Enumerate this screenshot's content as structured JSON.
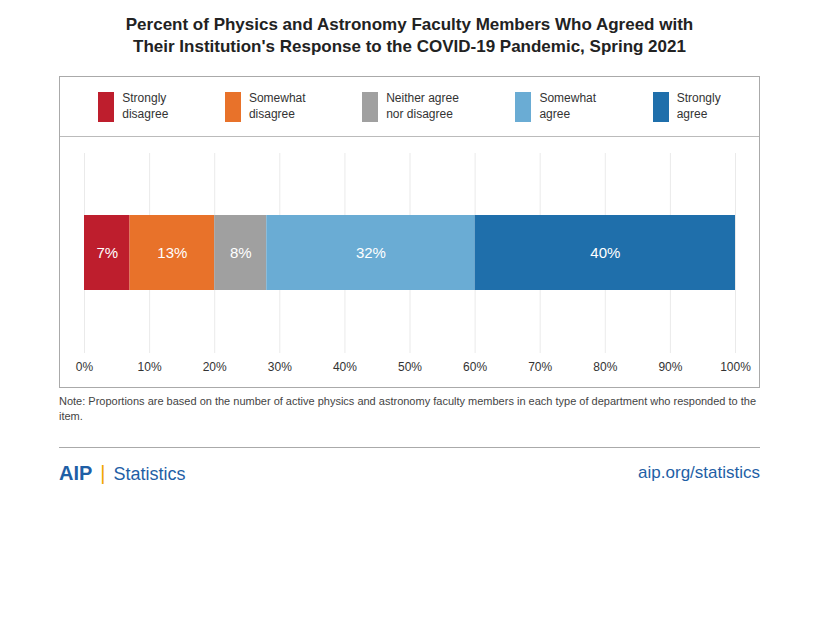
{
  "chart_data": {
    "type": "bar",
    "title": "Percent of Physics and Astronomy Faculty Members Who Agreed with\nTheir Institution's Response to the COVID-19 Pandemic, Spring 2021",
    "orientation": "horizontal",
    "stacked": true,
    "categories": [
      null
    ],
    "series": [
      {
        "name": "Strongly\ndisagree",
        "color": "#be1e2d",
        "values": [
          7
        ],
        "value_labels": [
          "7%"
        ]
      },
      {
        "name": "Somewhat\ndisagree",
        "color": "#e8722a",
        "values": [
          13
        ],
        "value_labels": [
          "13%"
        ]
      },
      {
        "name": "Neither agree\nnor disagree",
        "color": "#a0a0a0",
        "values": [
          8
        ],
        "value_labels": [
          "8%"
        ]
      },
      {
        "name": "Somewhat\nagree",
        "color": "#6aacd4",
        "values": [
          32
        ],
        "value_labels": [
          "32%"
        ]
      },
      {
        "name": "Strongly\nagree",
        "color": "#1f6fab",
        "values": [
          40
        ],
        "value_labels": [
          "40%"
        ]
      }
    ],
    "xlim": [
      0,
      100
    ],
    "xticks": [
      {
        "value": 0,
        "label": "0%"
      },
      {
        "value": 10,
        "label": "10%"
      },
      {
        "value": 20,
        "label": "20%"
      },
      {
        "value": 30,
        "label": "30%"
      },
      {
        "value": 40,
        "label": "40%"
      },
      {
        "value": 50,
        "label": "50%"
      },
      {
        "value": 60,
        "label": "60%"
      },
      {
        "value": 70,
        "label": "70%"
      },
      {
        "value": 80,
        "label": "80%"
      },
      {
        "value": 90,
        "label": "90%"
      },
      {
        "value": 100,
        "label": "100%"
      }
    ],
    "grid": true,
    "legend": "top",
    "data_labels": true,
    "tick_labels": "x",
    "annotations": [
      "Note: Proportions are based on the number of active physics and astronomy faculty members in each type of department who responded to the\nitem.",
      "AIP",
      "|",
      "Statistics",
      "aip.org/statistics"
    ]
  }
}
